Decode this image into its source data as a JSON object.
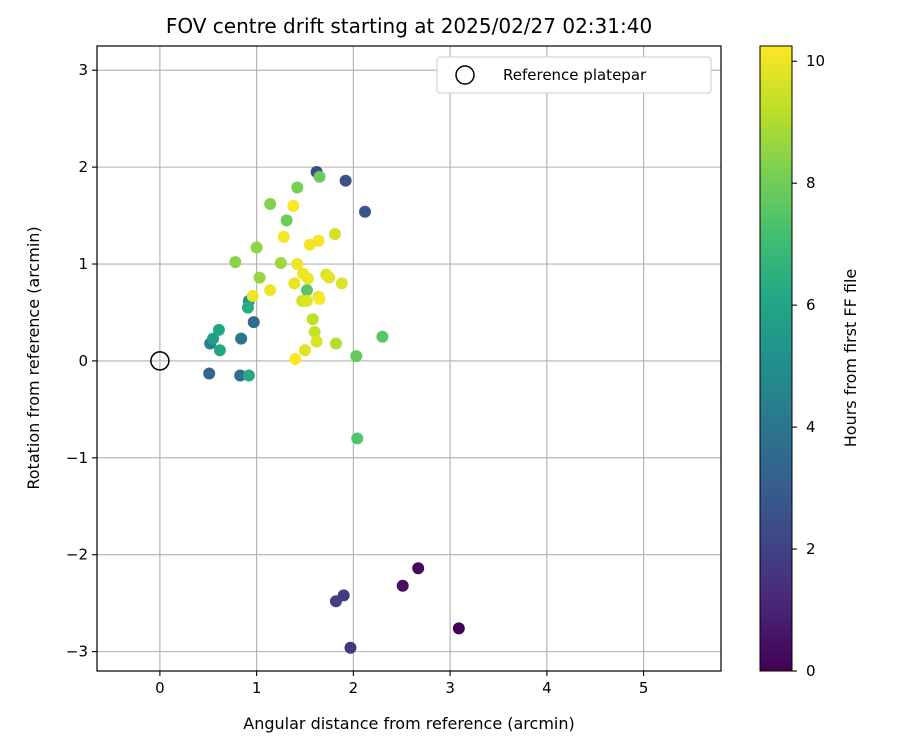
{
  "chart_data": {
    "type": "scatter",
    "title": "FOV centre drift starting at 2025/02/27 02:31:40",
    "xlabel": "Angular distance from reference (arcmin)",
    "ylabel": "Rotation from reference (arcmin)",
    "xlim": [
      -0.65,
      5.8
    ],
    "ylim": [
      -3.2,
      3.25
    ],
    "xticks": [
      0,
      1,
      2,
      3,
      4,
      5
    ],
    "xtick_labels": [
      "0",
      "1",
      "2",
      "3",
      "4",
      "5"
    ],
    "yticks": [
      -3,
      -2,
      -1,
      0,
      1,
      2,
      3
    ],
    "ytick_labels": [
      "−3",
      "−2",
      "−1",
      "0",
      "1",
      "2",
      "3"
    ],
    "grid": true,
    "legend": {
      "position": "top-right",
      "label": "Reference platepar"
    },
    "reference_point": {
      "x": 0,
      "y": 0
    },
    "colorbar": {
      "label": "Hours from first FF file",
      "colormap": "viridis",
      "range": [
        0,
        10.25
      ],
      "ticks": [
        0,
        2,
        4,
        6,
        8,
        10
      ],
      "tick_labels": [
        "0",
        "2",
        "4",
        "6",
        "8",
        "10"
      ]
    },
    "points": [
      {
        "x": 3.09,
        "y": -2.76,
        "hours": 0.0
      },
      {
        "x": 2.67,
        "y": -2.14,
        "hours": 0.2
      },
      {
        "x": 2.51,
        "y": -2.32,
        "hours": 0.4
      },
      {
        "x": 1.97,
        "y": -2.96,
        "hours": 1.7
      },
      {
        "x": 1.9,
        "y": -2.42,
        "hours": 1.8
      },
      {
        "x": 1.82,
        "y": -2.48,
        "hours": 1.9
      },
      {
        "x": 1.62,
        "y": 1.95,
        "hours": 2.3
      },
      {
        "x": 1.92,
        "y": 1.86,
        "hours": 2.5
      },
      {
        "x": 2.12,
        "y": 1.54,
        "hours": 2.7
      },
      {
        "x": 0.51,
        "y": -0.13,
        "hours": 3.4
      },
      {
        "x": 0.97,
        "y": 0.4,
        "hours": 3.6
      },
      {
        "x": 0.83,
        "y": -0.15,
        "hours": 3.8
      },
      {
        "x": 0.84,
        "y": 0.23,
        "hours": 4.0
      },
      {
        "x": 0.52,
        "y": 0.18,
        "hours": 4.3
      },
      {
        "x": 0.92,
        "y": 0.62,
        "hours": 5.2
      },
      {
        "x": 0.55,
        "y": 0.23,
        "hours": 5.8
      },
      {
        "x": 0.61,
        "y": 0.32,
        "hours": 6.0
      },
      {
        "x": 0.62,
        "y": 0.11,
        "hours": 6.1
      },
      {
        "x": 0.92,
        "y": -0.15,
        "hours": 6.2
      },
      {
        "x": 0.91,
        "y": 0.55,
        "hours": 6.4
      },
      {
        "x": 2.04,
        "y": -0.8,
        "hours": 7.4
      },
      {
        "x": 2.3,
        "y": 0.25,
        "hours": 7.5
      },
      {
        "x": 1.52,
        "y": 0.73,
        "hours": 7.6
      },
      {
        "x": 2.03,
        "y": 0.05,
        "hours": 7.8
      },
      {
        "x": 1.65,
        "y": 1.9,
        "hours": 7.9
      },
      {
        "x": 1.31,
        "y": 1.45,
        "hours": 8.0
      },
      {
        "x": 1.42,
        "y": 1.79,
        "hours": 8.1
      },
      {
        "x": 1.14,
        "y": 1.62,
        "hours": 8.3
      },
      {
        "x": 0.78,
        "y": 1.02,
        "hours": 8.4
      },
      {
        "x": 1.0,
        "y": 1.17,
        "hours": 8.5
      },
      {
        "x": 1.03,
        "y": 0.86,
        "hours": 8.6
      },
      {
        "x": 1.25,
        "y": 1.01,
        "hours": 8.7
      },
      {
        "x": 1.82,
        "y": 0.18,
        "hours": 9.1
      },
      {
        "x": 1.58,
        "y": 0.43,
        "hours": 9.3
      },
      {
        "x": 1.6,
        "y": 0.3,
        "hours": 9.4
      },
      {
        "x": 1.47,
        "y": 0.62,
        "hours": 9.6
      },
      {
        "x": 1.81,
        "y": 1.31,
        "hours": 9.6
      },
      {
        "x": 1.88,
        "y": 0.8,
        "hours": 9.7
      },
      {
        "x": 1.72,
        "y": 0.89,
        "hours": 9.7
      },
      {
        "x": 1.62,
        "y": 0.2,
        "hours": 9.7
      },
      {
        "x": 1.5,
        "y": 0.11,
        "hours": 9.8
      },
      {
        "x": 1.52,
        "y": 0.62,
        "hours": 9.8
      },
      {
        "x": 1.64,
        "y": 0.66,
        "hours": 9.8
      },
      {
        "x": 1.75,
        "y": 0.86,
        "hours": 9.9
      },
      {
        "x": 1.39,
        "y": 0.8,
        "hours": 9.9
      },
      {
        "x": 1.53,
        "y": 0.85,
        "hours": 10.0
      },
      {
        "x": 1.48,
        "y": 0.9,
        "hours": 10.0
      },
      {
        "x": 1.42,
        "y": 1.0,
        "hours": 10.0
      },
      {
        "x": 1.14,
        "y": 0.73,
        "hours": 10.0
      },
      {
        "x": 0.96,
        "y": 0.67,
        "hours": 10.0
      },
      {
        "x": 1.28,
        "y": 1.28,
        "hours": 10.1
      },
      {
        "x": 1.55,
        "y": 1.2,
        "hours": 10.1
      },
      {
        "x": 1.64,
        "y": 1.24,
        "hours": 10.1
      },
      {
        "x": 1.38,
        "y": 1.6,
        "hours": 10.2
      },
      {
        "x": 1.4,
        "y": 0.02,
        "hours": 10.2
      },
      {
        "x": 1.65,
        "y": 0.64,
        "hours": 10.2
      }
    ]
  }
}
